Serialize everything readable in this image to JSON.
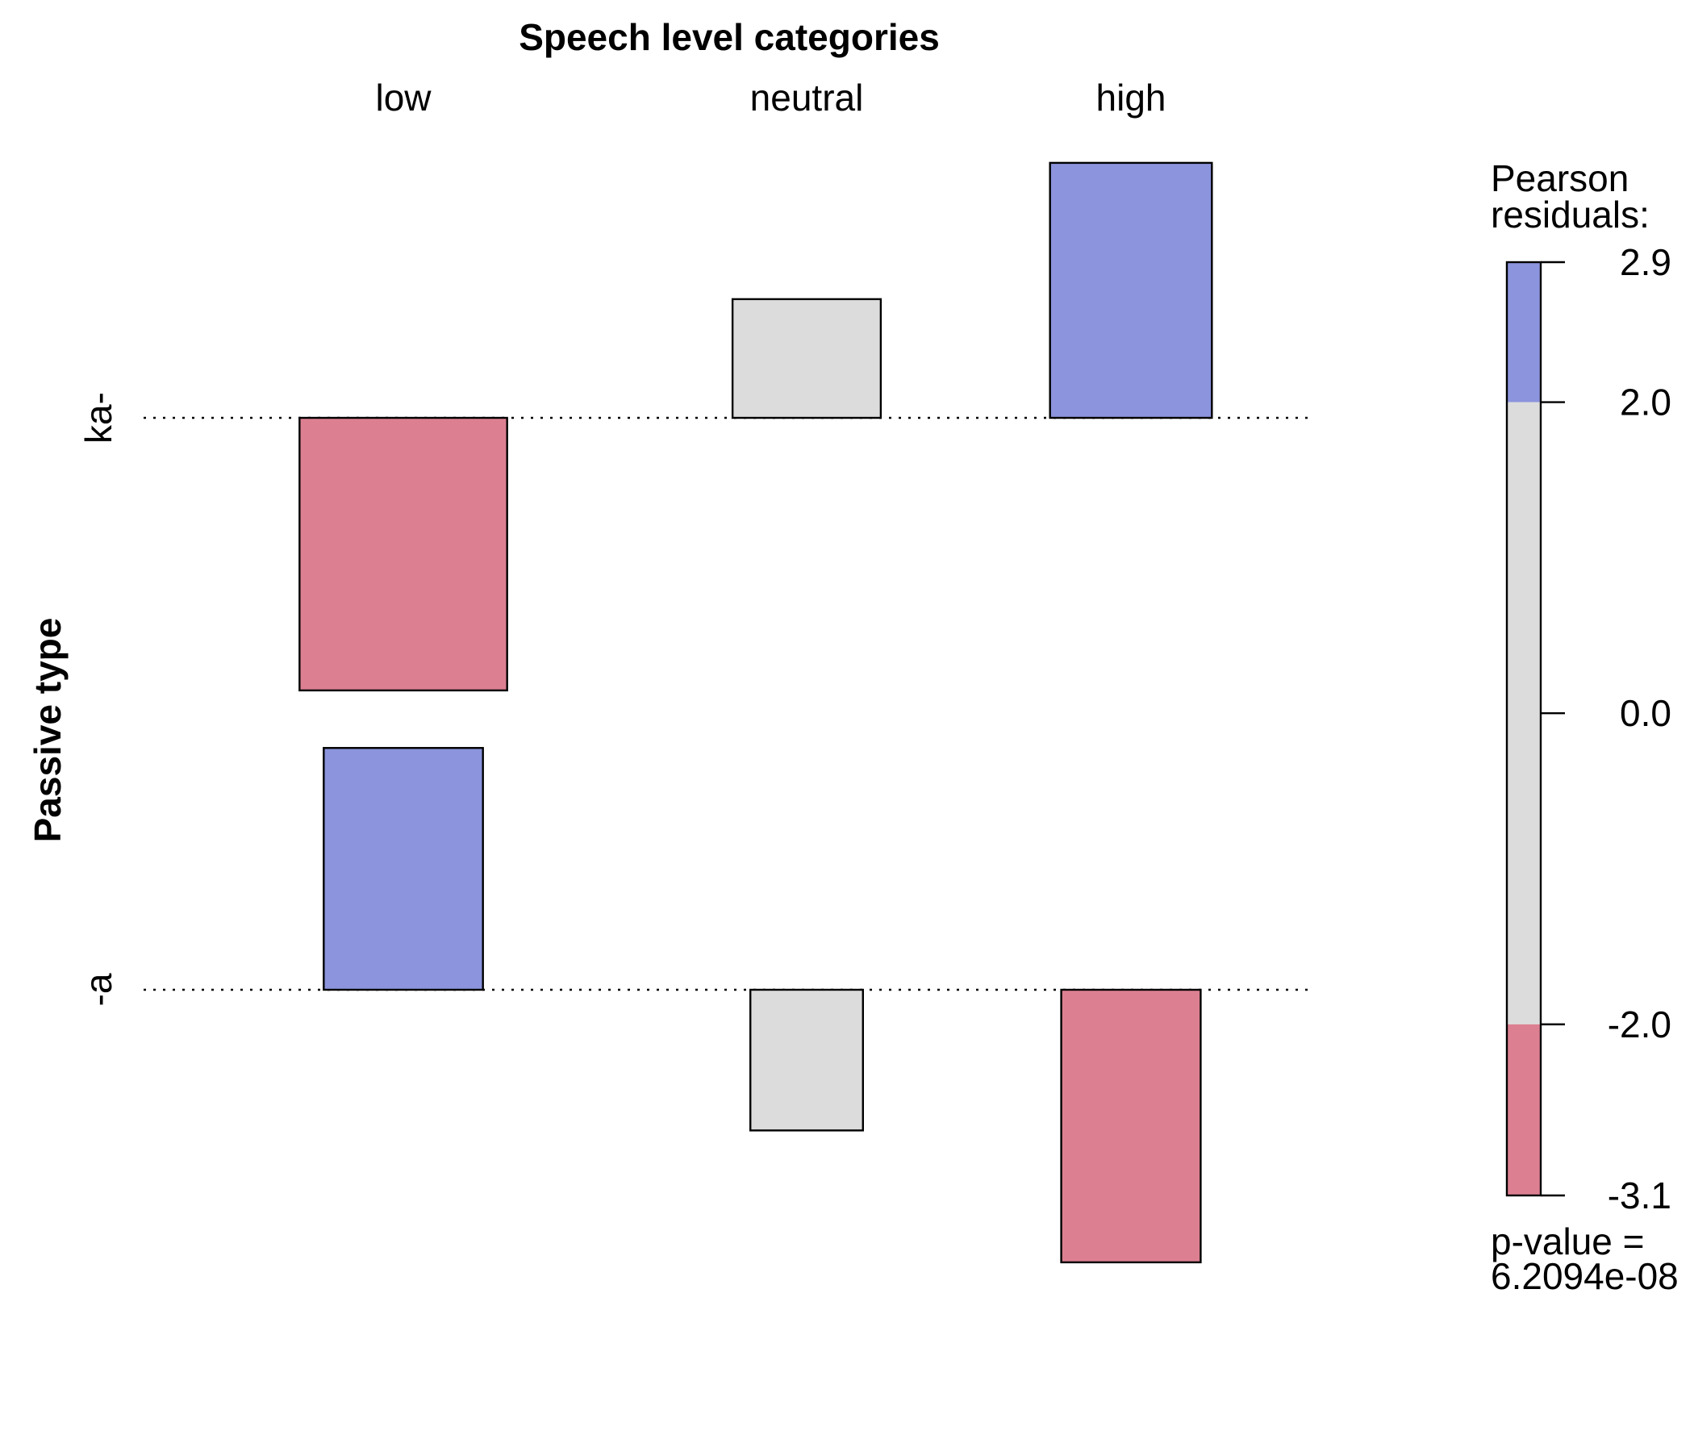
{
  "chart_data": {
    "type": "association-plot",
    "x_axis_title": "Speech level categories",
    "y_axis_title": "Passive type",
    "columns": [
      "low",
      "neutral",
      "high"
    ],
    "rows": [
      "ka-",
      "-a"
    ],
    "cells": [
      {
        "row": "ka-",
        "column": "low",
        "residual": -3.1,
        "expected": 255
      },
      {
        "row": "ka-",
        "column": "neutral",
        "residual": 1.35,
        "expected": 130
      },
      {
        "row": "ka-",
        "column": "high",
        "residual": 2.9,
        "expected": 155
      },
      {
        "row": "-a",
        "column": "low",
        "residual": 2.75,
        "expected": 150
      },
      {
        "row": "-a",
        "column": "neutral",
        "residual": -1.6,
        "expected": 75
      },
      {
        "row": "-a",
        "column": "high",
        "residual": -3.1,
        "expected": 115
      }
    ],
    "legend": {
      "title_lines": [
        "Pearson",
        "residuals:"
      ],
      "range": [
        -3.1,
        2.9
      ],
      "breaks": [
        2.0,
        -2.0
      ],
      "tick_values": [
        2.9,
        2.0,
        0.0,
        -2.0,
        -3.1
      ],
      "tick_labels": [
        "2.9",
        "2.0",
        "0.0",
        "-2.0",
        "-3.1"
      ],
      "p_value_lines": [
        "p-value =",
        "6.2094e-08"
      ]
    },
    "colors": {
      "positive": "#8b94dc",
      "negative": "#dc8091",
      "neutral": "#dcdcdc",
      "outline": "#000000"
    }
  }
}
